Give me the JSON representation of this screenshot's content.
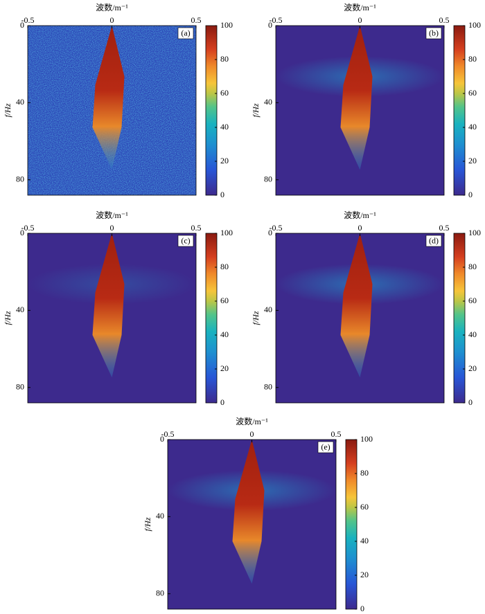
{
  "chart_data": [
    {
      "type": "heatmap",
      "panel_label": "(a)",
      "x_label": "波数/m⁻¹",
      "y_label": "f/Hz",
      "xlim": [
        -0.5,
        0.5
      ],
      "xticks": [
        -0.5,
        0,
        0.5
      ],
      "ylim": [
        0,
        88
      ],
      "yticks": [
        0,
        40,
        80
      ],
      "colorbar_lim": [
        0,
        100
      ],
      "colorbar_ticks": [
        0,
        20,
        40,
        60,
        80,
        100
      ]
    },
    {
      "type": "heatmap",
      "panel_label": "(b)",
      "x_label": "波数/m⁻¹",
      "y_label": "f/Hz",
      "xlim": [
        -0.5,
        0.5
      ],
      "xticks": [
        -0.5,
        0,
        0.5
      ],
      "ylim": [
        0,
        88
      ],
      "yticks": [
        0,
        40,
        80
      ],
      "colorbar_lim": [
        0,
        100
      ],
      "colorbar_ticks": [
        0,
        20,
        40,
        60,
        80,
        100
      ]
    },
    {
      "type": "heatmap",
      "panel_label": "(c)",
      "x_label": "波数/m⁻¹",
      "y_label": "f/Hz",
      "xlim": [
        -0.5,
        0.5
      ],
      "xticks": [
        -0.5,
        0,
        0.5
      ],
      "ylim": [
        0,
        88
      ],
      "yticks": [
        0,
        40,
        80
      ],
      "colorbar_lim": [
        0,
        100
      ],
      "colorbar_ticks": [
        0,
        20,
        40,
        60,
        80,
        100
      ]
    },
    {
      "type": "heatmap",
      "panel_label": "(d)",
      "x_label": "波数/m⁻¹",
      "y_label": "f/Hz",
      "xlim": [
        -0.5,
        0.5
      ],
      "xticks": [
        -0.5,
        0,
        0.5
      ],
      "ylim": [
        0,
        88
      ],
      "yticks": [
        0,
        40,
        80
      ],
      "colorbar_lim": [
        0,
        100
      ],
      "colorbar_ticks": [
        0,
        20,
        40,
        60,
        80,
        100
      ]
    },
    {
      "type": "heatmap",
      "panel_label": "(e)",
      "x_label": "波数/m⁻¹",
      "y_label": "f/Hz",
      "xlim": [
        -0.5,
        0.5
      ],
      "xticks": [
        -0.5,
        0,
        0.5
      ],
      "ylim": [
        0,
        88
      ],
      "yticks": [
        0,
        40,
        80
      ],
      "colorbar_lim": [
        0,
        100
      ],
      "colorbar_ticks": [
        0,
        20,
        40,
        60,
        80,
        100
      ]
    }
  ]
}
